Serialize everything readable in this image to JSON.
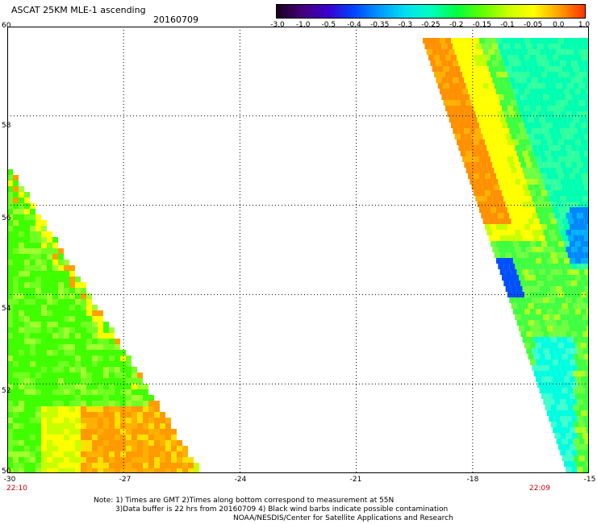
{
  "header": {
    "title": "ASCAT 25KM MLE-1 ascending",
    "date": "20160709"
  },
  "colorbar": {
    "labels": [
      "-3.0",
      "-1.0",
      "-0.5",
      "-0.4",
      "-0.35",
      "-0.3",
      "-0.25",
      "-0.2",
      "-0.15",
      "-0.1",
      "-0.05",
      "0.0",
      "1.0"
    ],
    "colors": [
      "#1a0020",
      "#44007a",
      "#3a00d0",
      "#0044ff",
      "#0099ff",
      "#00e0f0",
      "#00ffc0",
      "#00ff40",
      "#60ff00",
      "#c8ff00",
      "#ffff00",
      "#ffa000",
      "#ff3000"
    ]
  },
  "map": {
    "y_ticks": [
      "60",
      "58",
      "56",
      "54",
      "52",
      "50"
    ],
    "x_ticks": [
      "-30",
      "-27",
      "-24",
      "-21",
      "-18",
      "-15"
    ],
    "lat_range": [
      50,
      60
    ],
    "lon_range": [
      -30,
      -15
    ],
    "time_left": "22:10",
    "time_right": "22:09"
  },
  "notes": {
    "line1": "Note: 1) Times are GMT 2)Times along bottom correspond to measurement at 55N",
    "line2": "3)Data buffer is 22 hrs from 20160709 4) Black wind barbs indicate possible contamination",
    "line3": "NOAA/NESDIS/Center for Satellite Applications and Research"
  }
}
